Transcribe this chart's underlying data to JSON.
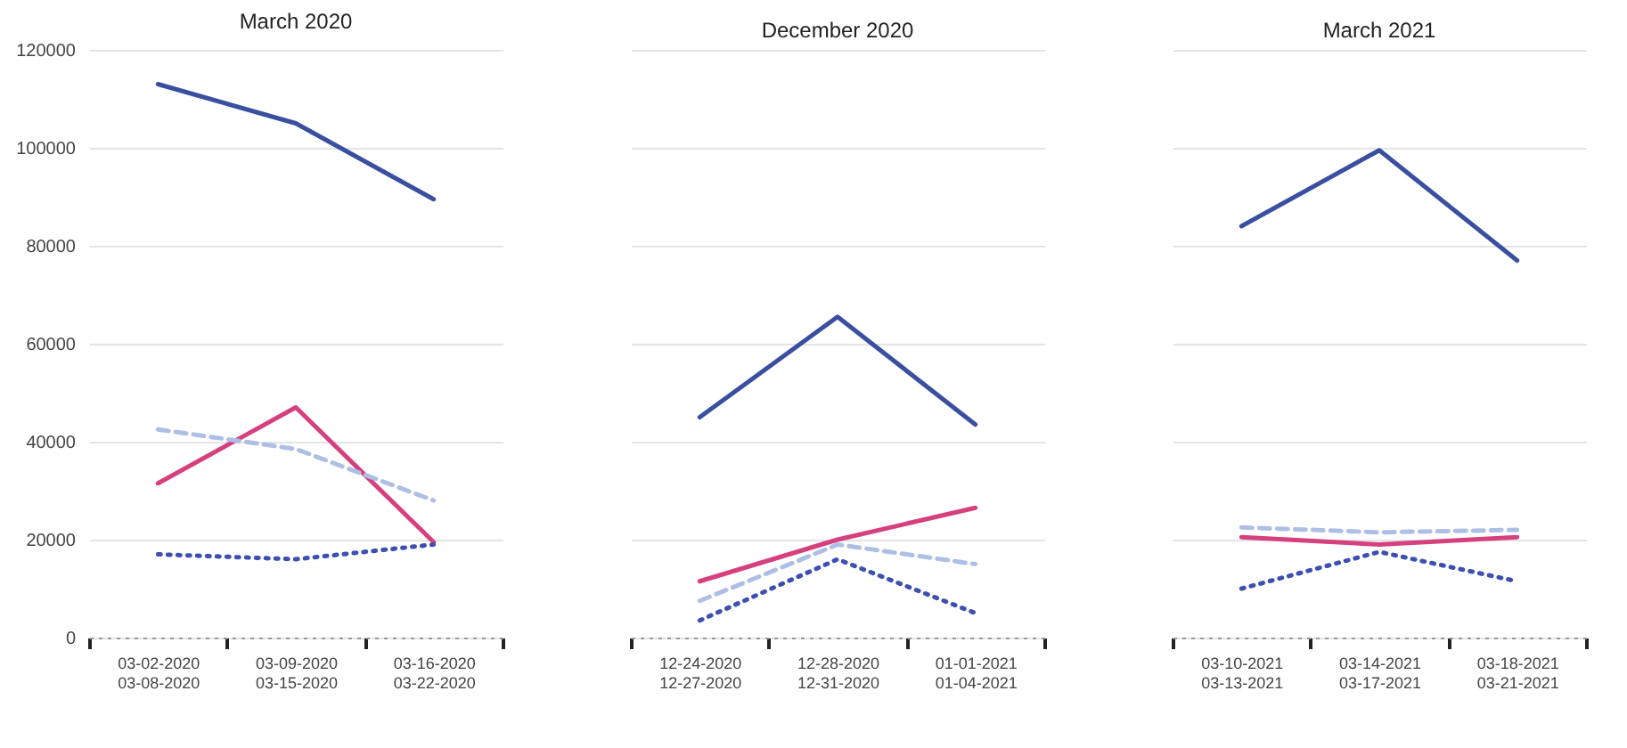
{
  "chart_data": [
    {
      "type": "line",
      "title": "March 2020",
      "categories": [
        "03-02-2020\n03-08-2020",
        "03-09-2020\n03-15-2020",
        "03-16-2020\n03-22-2020"
      ],
      "ylim": [
        0,
        120000
      ],
      "yticks": [
        0,
        20000,
        40000,
        60000,
        80000,
        100000,
        120000
      ],
      "grid": "y",
      "legend": false,
      "series": [
        {
          "color": "#3a4fa0",
          "line_style": "solid",
          "values": [
            113000,
            105000,
            89500
          ]
        },
        {
          "color": "#d6407f",
          "line_style": "solid",
          "values": [
            31500,
            47000,
            19500
          ]
        },
        {
          "color": "#aebfe6",
          "line_style": "dashed",
          "values": [
            42500,
            38500,
            28000
          ]
        },
        {
          "color": "#3d4fb0",
          "line_style": "dotted",
          "values": [
            17000,
            16000,
            19000
          ]
        }
      ]
    },
    {
      "type": "line",
      "title": "December 2020",
      "categories": [
        "12-24-2020\n12-27-2020",
        "12-28-2020\n12-31-2020",
        "01-01-2021\n01-04-2021"
      ],
      "ylim": [
        0,
        120000
      ],
      "yticks": [
        0,
        20000,
        40000,
        60000,
        80000,
        100000,
        120000
      ],
      "grid": "y",
      "legend": false,
      "tick_labels": "x",
      "series": [
        {
          "color": "#3a4fa0",
          "line_style": "solid",
          "values": [
            45000,
            65500,
            43500
          ]
        },
        {
          "color": "#d6407f",
          "line_style": "solid",
          "values": [
            11500,
            20000,
            26500
          ]
        },
        {
          "color": "#aebfe6",
          "line_style": "dashed",
          "values": [
            7500,
            19000,
            15000
          ]
        },
        {
          "color": "#3d4fb0",
          "line_style": "dotted",
          "values": [
            3500,
            16000,
            5000
          ]
        }
      ]
    },
    {
      "type": "line",
      "title": "March 2021",
      "categories": [
        "03-10-2021\n03-13-2021",
        "03-14-2021\n03-17-2021",
        "03-18-2021\n03-21-2021"
      ],
      "ylim": [
        0,
        120000
      ],
      "yticks": [
        0,
        20000,
        40000,
        60000,
        80000,
        100000,
        120000
      ],
      "grid": "y",
      "legend": false,
      "tick_labels": "x",
      "series": [
        {
          "color": "#3a4fa0",
          "line_style": "solid",
          "values": [
            84000,
            99500,
            77000
          ]
        },
        {
          "color": "#d6407f",
          "line_style": "solid",
          "values": [
            20500,
            19000,
            20500
          ]
        },
        {
          "color": "#aebfe6",
          "line_style": "dashed",
          "values": [
            22500,
            21500,
            22000
          ]
        },
        {
          "color": "#3d4fb0",
          "line_style": "dotted",
          "values": [
            10000,
            17500,
            11500
          ]
        }
      ]
    }
  ]
}
